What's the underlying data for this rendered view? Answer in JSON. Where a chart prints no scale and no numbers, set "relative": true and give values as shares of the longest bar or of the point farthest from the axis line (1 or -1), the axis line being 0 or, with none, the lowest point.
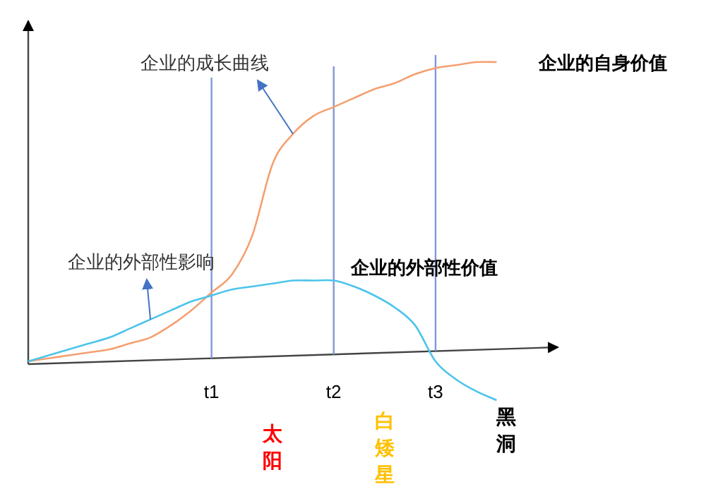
{
  "chart_data": {
    "type": "line",
    "relative": true,
    "categories": [
      null,
      null,
      null,
      null,
      null,
      null,
      null,
      null,
      null,
      "t1",
      null,
      null,
      null,
      null,
      null,
      "t2",
      null,
      null,
      null,
      null,
      "t3",
      null,
      null,
      null,
      null,
      null,
      null
    ],
    "series": [
      {
        "name": "企业的自身价值",
        "color": "#f4a070",
        "values": [
          0,
          0.01,
          0.02,
          0.03,
          0.04,
          0.06,
          0.08,
          0.12,
          0.17,
          0.23,
          0.29,
          0.42,
          0.66,
          0.76,
          0.82,
          0.85,
          0.88,
          0.91,
          0.93,
          0.96,
          0.98,
          0.99,
          1,
          1,
          null,
          null,
          null
        ]
      },
      {
        "name": "企业的外部性价值",
        "color": "#4cc4ec",
        "values": [
          0,
          0.02,
          0.04,
          0.06,
          0.08,
          0.11,
          0.14,
          0.17,
          0.2,
          0.22,
          0.24,
          0.25,
          0.26,
          0.27,
          0.27,
          0.27,
          0.25,
          0.22,
          0.18,
          0.12,
          0,
          -0.06,
          -0.1,
          -0.13,
          null,
          null,
          null
        ]
      }
    ],
    "ref_lines": [
      {
        "axis": "x",
        "value": "t1",
        "color": "#8098d8"
      },
      {
        "axis": "x",
        "value": "t2",
        "color": "#8098d8"
      },
      {
        "axis": "x",
        "value": "t3",
        "color": "#8098d8"
      }
    ],
    "annotations": [
      "企业的成长曲线",
      "企业的外部性影响",
      "太阳",
      "白矮星",
      "黑洞"
    ]
  }
}
